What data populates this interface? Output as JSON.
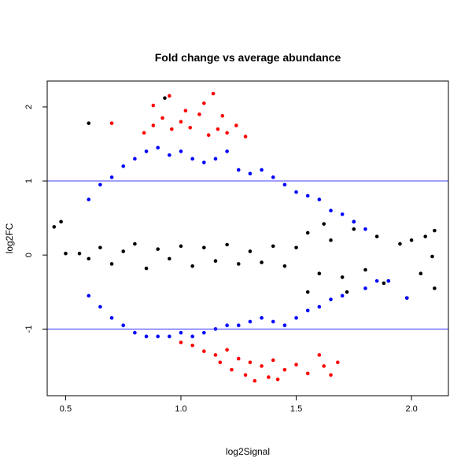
{
  "chart_data": {
    "type": "scatter",
    "title": "Fold change vs average abundance",
    "xlabel": "log2Signal",
    "ylabel": "log2FC",
    "xlim": [
      0.42,
      2.16
    ],
    "ylim": [
      -1.9,
      2.35
    ],
    "x_ticks": [
      0.5,
      1.0,
      1.5,
      2.0
    ],
    "x_tick_labels": [
      "0.5",
      "1.0",
      "1.5",
      "2.0"
    ],
    "y_ticks": [
      -1,
      0,
      1,
      2
    ],
    "y_tick_labels": [
      "-1",
      "0",
      "1",
      "2"
    ],
    "threshold_lines": [
      1,
      -1
    ],
    "grid": false,
    "legend": "none",
    "colors": {
      "not_significant": "#000000",
      "moderate_change": "#0000ff",
      "large_change": "#ff0000",
      "threshold_line": "#4040ff"
    },
    "series": [
      {
        "key": "not_significant",
        "points": [
          [
            0.56,
            0.02
          ],
          [
            0.6,
            -0.05
          ],
          [
            0.65,
            0.1
          ],
          [
            0.7,
            -0.12
          ],
          [
            0.75,
            0.05
          ],
          [
            0.8,
            0.15
          ],
          [
            0.85,
            -0.18
          ],
          [
            0.9,
            0.08
          ],
          [
            0.95,
            -0.05
          ],
          [
            1.0,
            0.12
          ],
          [
            1.05,
            -0.15
          ],
          [
            1.1,
            0.1
          ],
          [
            1.15,
            -0.08
          ],
          [
            1.2,
            0.14
          ],
          [
            1.25,
            -0.12
          ],
          [
            1.3,
            0.05
          ],
          [
            1.35,
            -0.1
          ],
          [
            1.4,
            0.12
          ],
          [
            1.45,
            -0.15
          ],
          [
            1.5,
            0.1
          ],
          [
            1.55,
            0.3
          ],
          [
            1.6,
            -0.25
          ],
          [
            1.65,
            0.2
          ],
          [
            1.7,
            -0.3
          ],
          [
            1.75,
            0.35
          ],
          [
            1.8,
            -0.2
          ],
          [
            1.85,
            0.25
          ],
          [
            1.9,
            -0.35
          ],
          [
            1.95,
            0.15
          ],
          [
            2.0,
            0.2
          ],
          [
            2.04,
            -0.25
          ],
          [
            2.06,
            0.25
          ],
          [
            2.1,
            0.33
          ],
          [
            2.1,
            -0.45
          ],
          [
            2.09,
            -0.02
          ],
          [
            0.45,
            0.38
          ],
          [
            0.48,
            0.45
          ],
          [
            0.5,
            0.02
          ],
          [
            0.6,
            1.78
          ],
          [
            0.93,
            2.12
          ],
          [
            1.75,
            0.45
          ],
          [
            1.55,
            -0.5
          ],
          [
            1.88,
            -0.38
          ],
          [
            1.98,
            -0.58
          ],
          [
            1.72,
            -0.5
          ],
          [
            1.62,
            0.42
          ]
        ]
      },
      {
        "key": "moderate_change",
        "points": [
          [
            0.6,
            0.75
          ],
          [
            0.65,
            0.95
          ],
          [
            0.7,
            1.05
          ],
          [
            0.75,
            1.2
          ],
          [
            0.8,
            1.3
          ],
          [
            0.85,
            1.4
          ],
          [
            0.9,
            1.45
          ],
          [
            0.95,
            1.35
          ],
          [
            1.0,
            1.4
          ],
          [
            1.05,
            1.3
          ],
          [
            1.1,
            1.25
          ],
          [
            1.15,
            1.3
          ],
          [
            1.2,
            1.4
          ],
          [
            1.25,
            1.15
          ],
          [
            1.3,
            1.1
          ],
          [
            1.35,
            1.15
          ],
          [
            1.4,
            1.05
          ],
          [
            1.45,
            0.95
          ],
          [
            1.5,
            0.85
          ],
          [
            1.55,
            0.8
          ],
          [
            1.6,
            0.75
          ],
          [
            1.65,
            0.6
          ],
          [
            1.7,
            0.55
          ],
          [
            1.75,
            0.45
          ],
          [
            1.8,
            0.35
          ],
          [
            0.6,
            -0.55
          ],
          [
            0.65,
            -0.7
          ],
          [
            0.7,
            -0.85
          ],
          [
            0.75,
            -0.95
          ],
          [
            0.8,
            -1.05
          ],
          [
            0.85,
            -1.1
          ],
          [
            0.9,
            -1.1
          ],
          [
            0.95,
            -1.1
          ],
          [
            1.0,
            -1.05
          ],
          [
            1.05,
            -1.1
          ],
          [
            1.1,
            -1.05
          ],
          [
            1.15,
            -1.0
          ],
          [
            1.2,
            -0.95
          ],
          [
            1.25,
            -0.95
          ],
          [
            1.3,
            -0.9
          ],
          [
            1.35,
            -0.85
          ],
          [
            1.4,
            -0.9
          ],
          [
            1.45,
            -0.95
          ],
          [
            1.5,
            -0.85
          ],
          [
            1.55,
            -0.75
          ],
          [
            1.6,
            -0.7
          ],
          [
            1.65,
            -0.6
          ],
          [
            1.7,
            -0.55
          ],
          [
            1.98,
            -0.58
          ],
          [
            1.8,
            -0.45
          ],
          [
            1.85,
            -0.35
          ],
          [
            1.9,
            -0.35
          ]
        ]
      },
      {
        "key": "large_change",
        "points": [
          [
            0.7,
            1.78
          ],
          [
            0.84,
            1.65
          ],
          [
            0.88,
            1.75
          ],
          [
            0.92,
            1.85
          ],
          [
            0.96,
            1.7
          ],
          [
            1.0,
            1.8
          ],
          [
            1.04,
            1.72
          ],
          [
            1.08,
            1.9
          ],
          [
            1.12,
            1.62
          ],
          [
            1.16,
            1.7
          ],
          [
            1.2,
            1.65
          ],
          [
            1.24,
            1.75
          ],
          [
            1.28,
            1.6
          ],
          [
            0.88,
            2.02
          ],
          [
            0.95,
            2.15
          ],
          [
            1.02,
            1.95
          ],
          [
            1.1,
            2.05
          ],
          [
            1.14,
            2.18
          ],
          [
            1.18,
            1.88
          ],
          [
            1.05,
            -1.22
          ],
          [
            1.1,
            -1.3
          ],
          [
            1.15,
            -1.35
          ],
          [
            1.2,
            -1.28
          ],
          [
            1.25,
            -1.4
          ],
          [
            1.3,
            -1.45
          ],
          [
            1.35,
            -1.5
          ],
          [
            1.4,
            -1.42
          ],
          [
            1.45,
            -1.55
          ],
          [
            1.5,
            -1.48
          ],
          [
            1.55,
            -1.6
          ],
          [
            1.62,
            -1.5
          ],
          [
            1.68,
            -1.45
          ],
          [
            1.28,
            -1.62
          ],
          [
            1.32,
            -1.7
          ],
          [
            1.38,
            -1.65
          ],
          [
            1.42,
            -1.68
          ],
          [
            1.22,
            -1.55
          ],
          [
            1.17,
            -1.45
          ],
          [
            1.0,
            -1.18
          ],
          [
            1.6,
            -1.35
          ],
          [
            1.65,
            -1.62
          ]
        ]
      }
    ]
  }
}
